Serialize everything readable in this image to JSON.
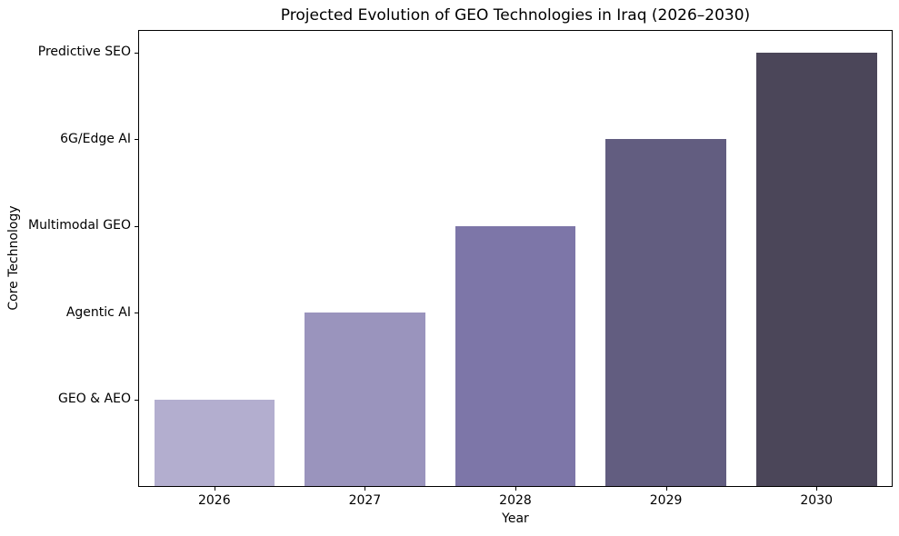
{
  "chart_data": {
    "type": "bar",
    "title": "Projected Evolution of GEO Technologies in Iraq (2026–2030)",
    "xlabel": "Year",
    "ylabel": "Core Technology",
    "categories": [
      "2026",
      "2027",
      "2028",
      "2029",
      "2030"
    ],
    "values": [
      1,
      2,
      3,
      4,
      5
    ],
    "bar_colors": [
      "#b3aecf",
      "#9a94bd",
      "#7d76a8",
      "#625d80",
      "#4b4659"
    ],
    "value_axis_ticks": [
      1,
      2,
      3,
      4,
      5
    ],
    "value_axis_tick_labels": [
      "GEO & AEO",
      "Agentic AI",
      "Multimodal GEO",
      "6G/Edge AI",
      "Predictive SEO"
    ],
    "year_to_technology": {
      "2026": "GEO & AEO",
      "2027": "Agentic AI",
      "2028": "Multimodal GEO",
      "2029": "6G/Edge AI",
      "2030": "Predictive SEO"
    },
    "ylim": [
      0,
      5.25
    ],
    "bar_width_fraction": 0.8,
    "grid": false,
    "legend_position": "none",
    "style": {
      "background_color": "#ffffff",
      "spine_color": "#000000",
      "text_color": "#000000",
      "spines": "all-four-sides"
    }
  }
}
